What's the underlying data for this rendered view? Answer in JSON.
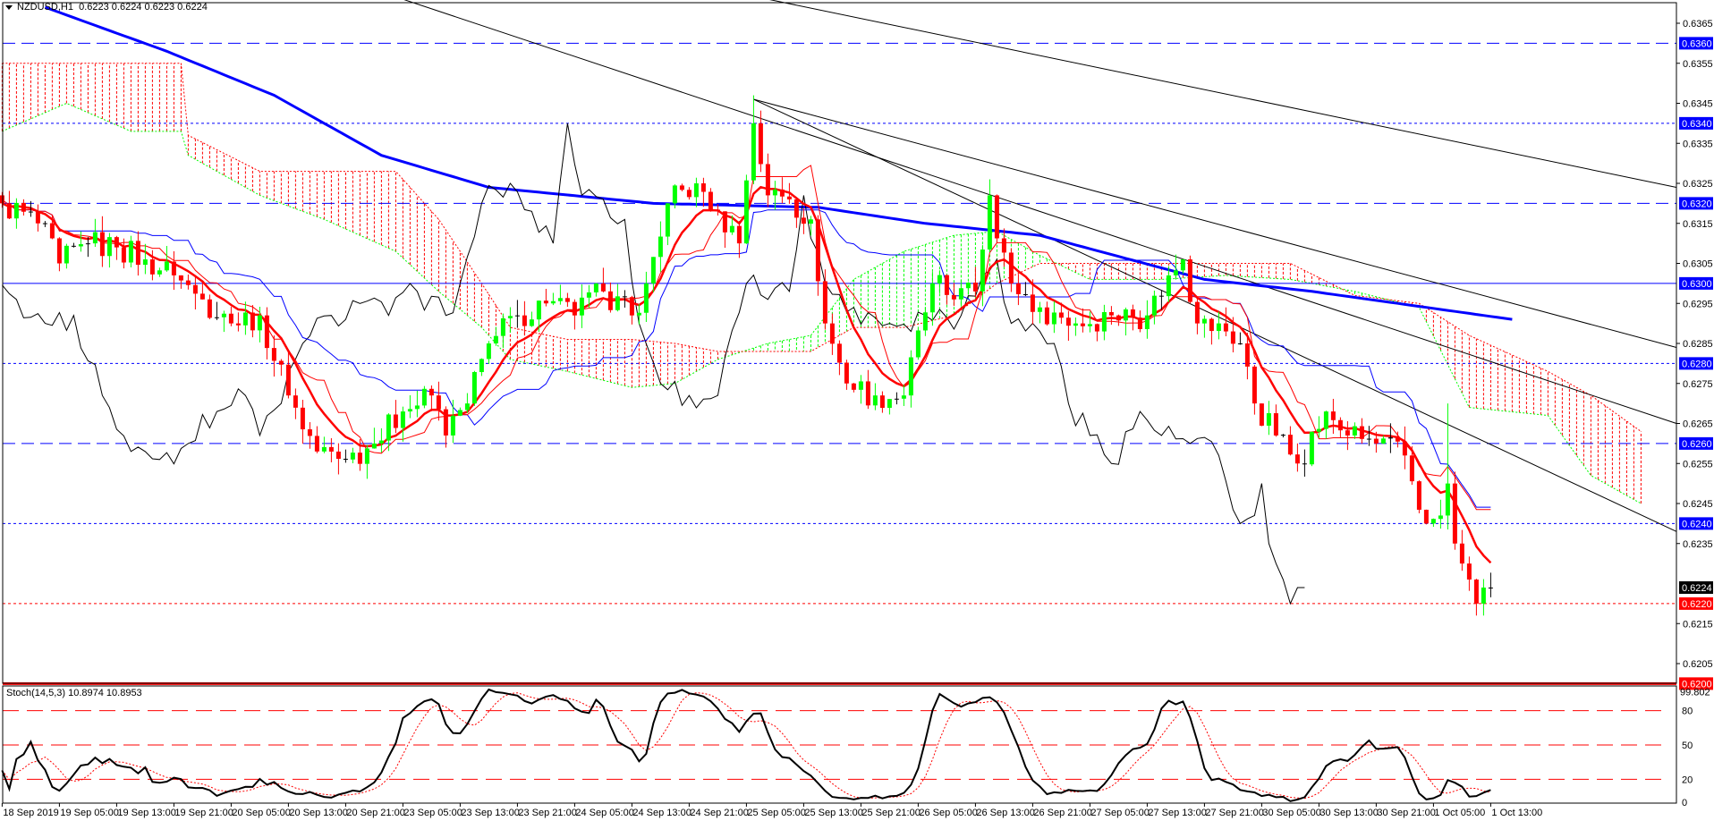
{
  "header": {
    "symbol": "NZDUSD,H1",
    "ohlc": "0.6223 0.6224 0.6223 0.6224"
  },
  "stoch_label": "Stoch(14,5,3) 10.8974 10.8953",
  "chart_data": {
    "type": "candlestick",
    "symbol": "NZDUSD",
    "timeframe": "H1",
    "price_range": [
      0.62,
      0.637
    ],
    "price_ticks": [
      "0.6365",
      "0.6355",
      "0.6345",
      "0.6335",
      "0.6325",
      "0.6315",
      "0.6305",
      "0.6295",
      "0.6285",
      "0.6275",
      "0.6265",
      "0.6255",
      "0.6245",
      "0.6235",
      "0.6215",
      "0.6205"
    ],
    "time_ticks": [
      "18 Sep 2019",
      "19 Sep 05:00",
      "19 Sep 13:00",
      "19 Sep 21:00",
      "20 Sep 05:00",
      "20 Sep 13:00",
      "20 Sep 21:00",
      "23 Sep 05:00",
      "23 Sep 13:00",
      "23 Sep 21:00",
      "24 Sep 05:00",
      "24 Sep 13:00",
      "24 Sep 21:00",
      "25 Sep 05:00",
      "25 Sep 13:00",
      "25 Sep 21:00",
      "26 Sep 05:00",
      "26 Sep 13:00",
      "26 Sep 21:00",
      "27 Sep 05:00",
      "27 Sep 13:00",
      "27 Sep 21:00",
      "30 Sep 05:00",
      "30 Sep 13:00",
      "30 Sep 21:00",
      "1 Oct 05:00",
      "1 Oct 13:00"
    ],
    "close_path": [
      {
        "bar": 0,
        "close": 0.632
      },
      {
        "bar": 5,
        "close": 0.6315
      },
      {
        "bar": 8,
        "close": 0.6305
      },
      {
        "bar": 12,
        "close": 0.631
      },
      {
        "bar": 16,
        "close": 0.6309
      },
      {
        "bar": 20,
        "close": 0.6306
      },
      {
        "bar": 24,
        "close": 0.6302
      },
      {
        "bar": 28,
        "close": 0.6296
      },
      {
        "bar": 32,
        "close": 0.629
      },
      {
        "bar": 36,
        "close": 0.6292
      },
      {
        "bar": 40,
        "close": 0.6272
      },
      {
        "bar": 44,
        "close": 0.6258
      },
      {
        "bar": 48,
        "close": 0.6256
      },
      {
        "bar": 52,
        "close": 0.626
      },
      {
        "bar": 56,
        "close": 0.6268
      },
      {
        "bar": 60,
        "close": 0.6272
      },
      {
        "bar": 62,
        "close": 0.6262
      },
      {
        "bar": 65,
        "close": 0.627
      },
      {
        "bar": 68,
        "close": 0.6285
      },
      {
        "bar": 72,
        "close": 0.6292
      },
      {
        "bar": 76,
        "close": 0.6295
      },
      {
        "bar": 80,
        "close": 0.6292
      },
      {
        "bar": 84,
        "close": 0.6298
      },
      {
        "bar": 88,
        "close": 0.6292
      },
      {
        "bar": 90,
        "close": 0.63
      },
      {
        "bar": 93,
        "close": 0.632
      },
      {
        "bar": 97,
        "close": 0.6325
      },
      {
        "bar": 100,
        "close": 0.6318
      },
      {
        "bar": 103,
        "close": 0.631
      },
      {
        "bar": 105,
        "close": 0.634,
        "high": 0.6347
      },
      {
        "bar": 107,
        "close": 0.6322
      },
      {
        "bar": 110,
        "close": 0.6321
      },
      {
        "bar": 113,
        "close": 0.6316
      },
      {
        "bar": 115,
        "close": 0.629
      },
      {
        "bar": 118,
        "close": 0.6275
      },
      {
        "bar": 122,
        "close": 0.6272
      },
      {
        "bar": 126,
        "close": 0.6272
      },
      {
        "bar": 130,
        "close": 0.63
      },
      {
        "bar": 133,
        "close": 0.6296
      },
      {
        "bar": 136,
        "close": 0.6298
      },
      {
        "bar": 138,
        "close": 0.6322,
        "high": 0.6326
      },
      {
        "bar": 141,
        "close": 0.63
      },
      {
        "bar": 145,
        "close": 0.6294
      },
      {
        "bar": 150,
        "close": 0.629
      },
      {
        "bar": 155,
        "close": 0.6292
      },
      {
        "bar": 160,
        "close": 0.6292
      },
      {
        "bar": 163,
        "close": 0.6302
      },
      {
        "bar": 165,
        "close": 0.6306
      },
      {
        "bar": 167,
        "close": 0.629
      },
      {
        "bar": 171,
        "close": 0.6288
      },
      {
        "bar": 173,
        "close": 0.6285
      },
      {
        "bar": 175,
        "close": 0.627
      },
      {
        "bar": 178,
        "close": 0.6262
      },
      {
        "bar": 181,
        "close": 0.6255
      },
      {
        "bar": 185,
        "close": 0.6268
      },
      {
        "bar": 188,
        "close": 0.6262
      },
      {
        "bar": 192,
        "close": 0.626
      },
      {
        "bar": 196,
        "close": 0.6257
      },
      {
        "bar": 199,
        "close": 0.624
      },
      {
        "bar": 201,
        "close": 0.6242
      },
      {
        "bar": 202,
        "close": 0.625,
        "high": 0.627
      },
      {
        "bar": 203,
        "close": 0.6235
      },
      {
        "bar": 204,
        "close": 0.623
      },
      {
        "bar": 205,
        "close": 0.6226
      },
      {
        "bar": 206,
        "close": 0.622,
        "low": 0.6217
      },
      {
        "bar": 207,
        "close": 0.6224,
        "low": 0.6217
      },
      {
        "bar": 208,
        "close": 0.6224
      }
    ],
    "moving_average_blue": [
      {
        "bar": 6,
        "value": 0.6369
      },
      {
        "bar": 23,
        "value": 0.6358
      },
      {
        "bar": 38,
        "value": 0.6347
      },
      {
        "bar": 53,
        "value": 0.6332
      },
      {
        "bar": 68,
        "value": 0.6324
      },
      {
        "bar": 91,
        "value": 0.632
      },
      {
        "bar": 114,
        "value": 0.6319
      },
      {
        "bar": 129,
        "value": 0.6315
      },
      {
        "bar": 145,
        "value": 0.6312
      },
      {
        "bar": 168,
        "value": 0.6301
      },
      {
        "bar": 183,
        "value": 0.6298
      },
      {
        "bar": 211,
        "value": 0.6291
      }
    ],
    "ichimoku_cloud": [
      {
        "bar": 0,
        "span_a": 0.6338,
        "span_b": 0.6355
      },
      {
        "bar": 9,
        "span_a": 0.6345,
        "span_b": 0.6355
      },
      {
        "bar": 18,
        "span_a": 0.6338,
        "span_b": 0.6355
      },
      {
        "bar": 25,
        "span_a": 0.6338,
        "span_b": 0.6355
      },
      {
        "bar": 26,
        "span_a": 0.6332,
        "span_b": 0.6337
      },
      {
        "bar": 36,
        "span_a": 0.6322,
        "span_b": 0.6328
      },
      {
        "bar": 45,
        "span_a": 0.6316,
        "span_b": 0.6328
      },
      {
        "bar": 55,
        "span_a": 0.6308,
        "span_b": 0.6328
      },
      {
        "bar": 61,
        "span_a": 0.6298,
        "span_b": 0.6316
      },
      {
        "bar": 67,
        "span_a": 0.6289,
        "span_b": 0.63
      },
      {
        "bar": 71,
        "span_a": 0.6281,
        "span_b": 0.6289
      },
      {
        "bar": 79,
        "span_a": 0.6278,
        "span_b": 0.6286
      },
      {
        "bar": 88,
        "span_a": 0.6274,
        "span_b": 0.6286
      },
      {
        "bar": 94,
        "span_a": 0.6275,
        "span_b": 0.6285
      },
      {
        "bar": 100,
        "span_a": 0.6281,
        "span_b": 0.6283
      },
      {
        "bar": 107,
        "span_a": 0.6285,
        "span_b": 0.6283
      },
      {
        "bar": 113,
        "span_a": 0.6287,
        "span_b": 0.6283
      },
      {
        "bar": 119,
        "span_a": 0.6301,
        "span_b": 0.6289
      },
      {
        "bar": 126,
        "span_a": 0.6308,
        "span_b": 0.6289
      },
      {
        "bar": 133,
        "span_a": 0.6312,
        "span_b": 0.6292
      },
      {
        "bar": 139,
        "span_a": 0.6313,
        "span_b": 0.63
      },
      {
        "bar": 145,
        "span_a": 0.6307,
        "span_b": 0.6305
      },
      {
        "bar": 152,
        "span_a": 0.6301,
        "span_b": 0.6305
      },
      {
        "bar": 162,
        "span_a": 0.6301,
        "span_b": 0.6305
      },
      {
        "bar": 171,
        "span_a": 0.6302,
        "span_b": 0.6305
      },
      {
        "bar": 180,
        "span_a": 0.6301,
        "span_b": 0.6305
      },
      {
        "bar": 189,
        "span_a": 0.6298,
        "span_b": 0.6297
      },
      {
        "bar": 198,
        "span_a": 0.6294,
        "span_b": 0.6295
      },
      {
        "bar": 205,
        "span_a": 0.6269,
        "span_b": 0.6287
      },
      {
        "bar": 216,
        "span_a": 0.6267,
        "span_b": 0.6278
      },
      {
        "bar": 222,
        "span_a": 0.6252,
        "span_b": 0.6272
      },
      {
        "bar": 229,
        "span_a": 0.6245,
        "span_b": 0.6263
      }
    ],
    "trendlines": [
      {
        "from": {
          "bar": 56,
          "price": 0.6371
        },
        "to": {
          "bar": 234,
          "price": 0.6265
        }
      },
      {
        "from": {
          "bar": 105,
          "price": 0.6346
        },
        "to": {
          "bar": 234,
          "price": 0.6284
        }
      },
      {
        "from": {
          "bar": 105,
          "price": 0.6346
        },
        "to": {
          "bar": 234,
          "price": 0.6238
        }
      },
      {
        "from": {
          "bar": 107,
          "price": 0.6371
        },
        "to": {
          "bar": 234,
          "price": 0.6324
        }
      }
    ],
    "levels": [
      {
        "price": 0.636,
        "label": "0.6360",
        "style": "dash",
        "color": "#0000ff"
      },
      {
        "price": 0.634,
        "label": "0.6340",
        "style": "dot",
        "color": "#0000ff"
      },
      {
        "price": 0.632,
        "label": "0.6320",
        "style": "dash",
        "color": "#0000ff"
      },
      {
        "price": 0.63,
        "label": "0.6300",
        "style": "solid",
        "color": "#0000ff"
      },
      {
        "price": 0.628,
        "label": "0.6280",
        "style": "dot",
        "color": "#0000ff"
      },
      {
        "price": 0.626,
        "label": "0.6260",
        "style": "dash",
        "color": "#0000ff"
      },
      {
        "price": 0.624,
        "label": "0.6240",
        "style": "dot",
        "color": "#0000ff"
      },
      {
        "price": 0.622,
        "label": "0.6220",
        "style": "dot",
        "color": "#ff0000"
      },
      {
        "price": 0.62,
        "label": "0.6200",
        "style": "thick",
        "color": "#ff0000"
      }
    ],
    "current_price": {
      "price": 0.6224,
      "label": "0.6224",
      "color": "#000000"
    },
    "stochastic": {
      "params": [
        14,
        5,
        3
      ],
      "k_value": 10.8974,
      "d_value": 10.8953,
      "axis_labels": [
        "99.802",
        "80",
        "50",
        "20",
        "0"
      ],
      "levels": [
        80,
        50,
        20
      ],
      "max": 99.802
    },
    "colors": {
      "bull": "#00ff00",
      "bear": "#ff0000",
      "ma_slow": "#0000ff",
      "ma_fast": "#ff0000",
      "kijun": "#0000ff",
      "chikou": "#000000",
      "stoch_main": "#000000",
      "stoch_signal": "#ff0000"
    }
  }
}
